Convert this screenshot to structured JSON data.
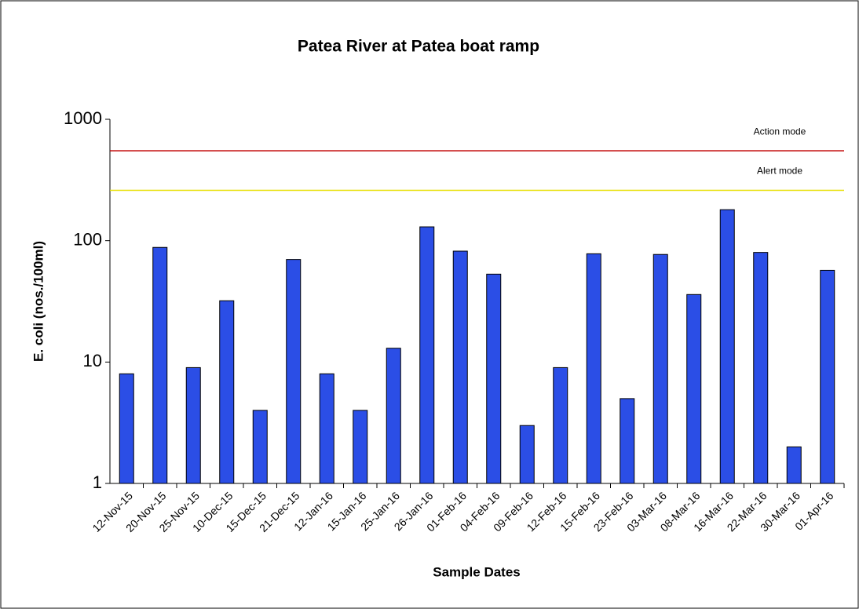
{
  "chart_data": {
    "type": "bar",
    "title": "Patea River at Patea boat ramp",
    "x_label": "Sample Dates",
    "y_label": "E. coli (nos./100ml)",
    "categories": [
      "12-Nov-15",
      "20-Nov-15",
      "25-Nov-15",
      "10-Dec-15",
      "15-Dec-15",
      "21-Dec-15",
      "12-Jan-16",
      "15-Jan-16",
      "25-Jan-16",
      "26-Jan-16",
      "01-Feb-16",
      "04-Feb-16",
      "09-Feb-16",
      "12-Feb-16",
      "15-Feb-16",
      "23-Feb-16",
      "03-Mar-16",
      "08-Mar-16",
      "16-Mar-16",
      "22-Mar-16",
      "30-Mar-16",
      "01-Apr-16"
    ],
    "values": [
      8,
      88,
      9,
      32,
      4,
      70,
      8,
      4,
      13,
      130,
      82,
      53,
      3,
      9,
      78,
      5,
      77,
      36,
      180,
      80,
      2,
      57
    ],
    "color": "#2b4ee6",
    "log_scale": true,
    "ylim": [
      1,
      1000
    ],
    "yticks": [
      1,
      10,
      100,
      1000
    ],
    "grid": false,
    "reference_lines": [
      {
        "label": "Action mode",
        "value": 550,
        "color": "#c00000"
      },
      {
        "label": "Alert mode",
        "value": 260,
        "color": "#e8e000"
      }
    ]
  }
}
